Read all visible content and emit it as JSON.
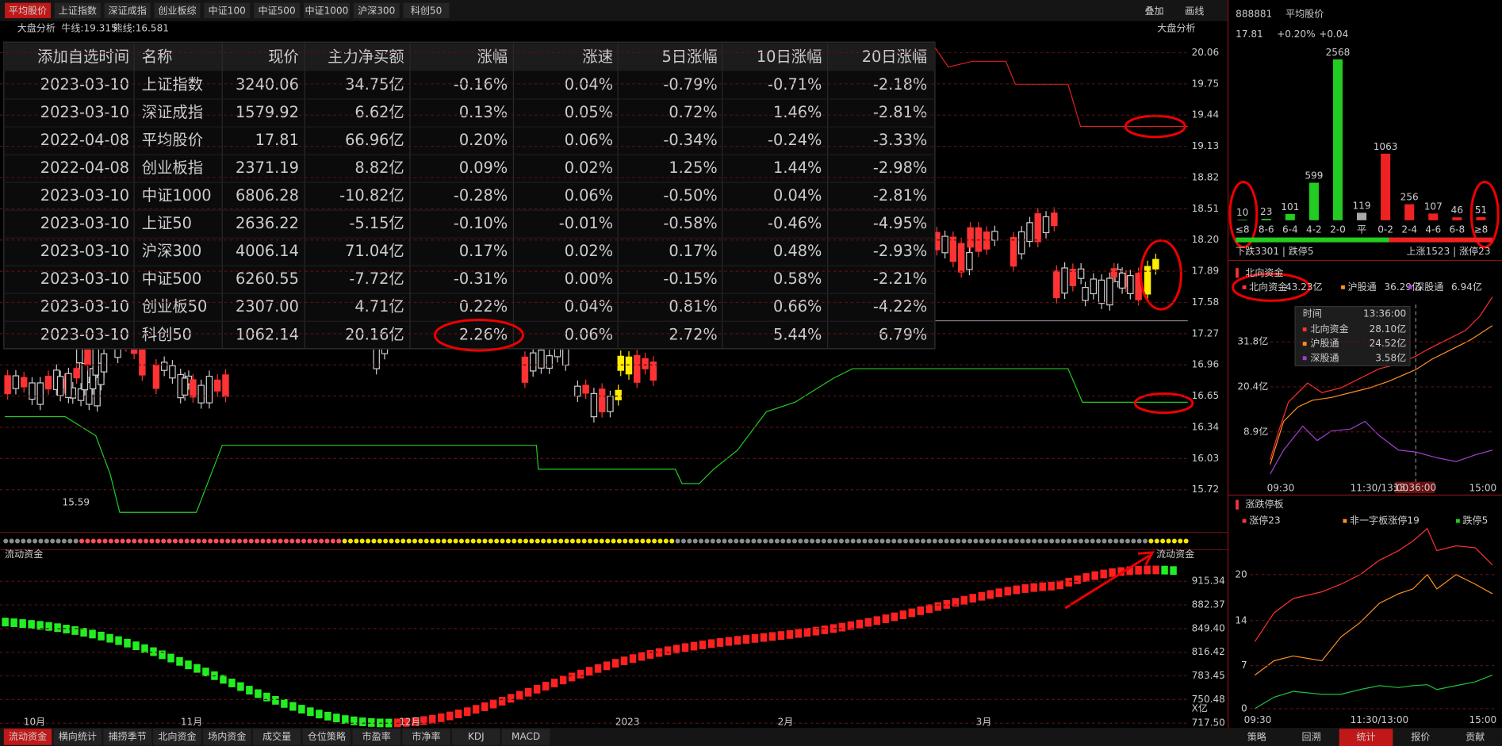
{
  "top_tabs": [
    "平均股价",
    "上证指数",
    "深证成指",
    "创业板综",
    "中证100",
    "中证500",
    "中证1000",
    "沪深300",
    "科创50"
  ],
  "top_right": [
    "叠加",
    "画线"
  ],
  "chart_header": {
    "title": "大盘分析",
    "bull": "牛线:19.315",
    "bear": "熊线:16.581",
    "right": "大盘分析"
  },
  "table": {
    "headers": [
      "添加自选时间",
      "名称",
      "现价",
      "主力净买额",
      "涨幅",
      "涨速",
      "5日涨幅",
      "10日涨幅",
      "20日涨幅"
    ],
    "rows": [
      [
        "2023-03-10",
        "上证指数",
        "3240.06",
        "34.75亿",
        "-0.16%",
        "0.04%",
        "-0.79%",
        "-0.71%",
        "-2.18%"
      ],
      [
        "2023-03-10",
        "深证成指",
        "1579.92",
        "6.62亿",
        "0.13%",
        "0.05%",
        "0.72%",
        "1.46%",
        "-2.81%"
      ],
      [
        "2022-04-08",
        "平均股价",
        "17.81",
        "66.96亿",
        "0.20%",
        "0.06%",
        "-0.34%",
        "-0.24%",
        "-3.33%"
      ],
      [
        "2022-04-08",
        "创业板指",
        "2371.19",
        "8.82亿",
        "0.09%",
        "0.02%",
        "1.25%",
        "1.44%",
        "-2.98%"
      ],
      [
        "2023-03-10",
        "中证1000",
        "6806.28",
        "-10.82亿",
        "-0.28%",
        "0.06%",
        "-0.50%",
        "0.04%",
        "-2.81%"
      ],
      [
        "2023-03-10",
        "上证50",
        "2636.22",
        "-5.15亿",
        "-0.10%",
        "-0.01%",
        "-0.58%",
        "-0.46%",
        "-4.95%"
      ],
      [
        "2023-03-10",
        "沪深300",
        "4006.14",
        "71.04亿",
        "0.17%",
        "0.02%",
        "0.17%",
        "0.48%",
        "-2.93%"
      ],
      [
        "2023-03-10",
        "中证500",
        "6260.55",
        "-7.72亿",
        "-0.31%",
        "0.00%",
        "-0.15%",
        "0.58%",
        "-2.21%"
      ],
      [
        "2023-03-10",
        "创业板50",
        "2307.00",
        "4.71亿",
        "0.22%",
        "0.04%",
        "0.81%",
        "0.66%",
        "-4.22%"
      ],
      [
        "2023-03-10",
        "科创50",
        "1062.14",
        "20.16亿",
        "2.26%",
        "0.06%",
        "2.72%",
        "5.44%",
        "6.79%"
      ]
    ]
  },
  "price_axis": [
    "20.06",
    "19.75",
    "19.44",
    "19.13",
    "18.82",
    "18.51",
    "18.20",
    "17.89",
    "17.58",
    "17.27",
    "16.96",
    "16.65",
    "16.34",
    "16.03",
    "15.72"
  ],
  "price_low": "15.59",
  "flow": {
    "title": "流动资金",
    "right": "流动资金",
    "axis": [
      "915.34",
      "882.37",
      "849.40",
      "816.42",
      "783.45",
      "750.48",
      "717.50"
    ],
    "unit": "X亿"
  },
  "x_labels": [
    "10月",
    "11月",
    "12月",
    "2023",
    "2月",
    "3月"
  ],
  "bottom_tabs": [
    "流动资金",
    "横向统计",
    "捕捞季节",
    "北向资金",
    "场内资金",
    "成交量",
    "仓位策略",
    "市盈率",
    "市净率",
    "KDJ",
    "MACD"
  ],
  "quote": {
    "code": "888881",
    "name": "平均股价",
    "price": "17.81",
    "change_pct": "+0.20%",
    "change": "+0.04"
  },
  "distribution": {
    "categories": [
      "≤8",
      "8-6",
      "6-4",
      "4-2",
      "2-0",
      "平",
      "0-2",
      "2-4",
      "4-6",
      "6-8",
      "≥8"
    ],
    "values": [
      10,
      23,
      101,
      599,
      2568,
      119,
      1063,
      256,
      107,
      46,
      51
    ],
    "footer_left": "下跌3301 | 跌停5",
    "footer_right": "上涨1523 | 涨停23"
  },
  "north": {
    "title": "北向资金",
    "legend": [
      {
        "name": "北向资金",
        "value": "43.23亿"
      },
      {
        "name": "沪股通",
        "value": "36.29亿"
      },
      {
        "name": "深股通",
        "value": "6.94亿"
      }
    ],
    "yaxis": [
      "31.8亿",
      "20.4亿",
      "8.9亿"
    ],
    "xaxis": [
      "09:30",
      "11:30/13:00",
      "15:00"
    ],
    "cursor_time": "13:36:00",
    "tooltip": {
      "time_label": "时间",
      "time": "13:36:00",
      "rows": [
        {
          "name": "北向资金",
          "value": "28.10亿"
        },
        {
          "name": "沪股通",
          "value": "24.52亿"
        },
        {
          "name": "深股通",
          "value": "3.58亿"
        }
      ]
    }
  },
  "limit": {
    "title": "涨跌停板",
    "legend": [
      {
        "name": "涨停",
        "value": "23"
      },
      {
        "name": "非一字板涨停",
        "value": "19"
      },
      {
        "name": "跌停",
        "value": "5"
      }
    ],
    "yaxis": [
      "20",
      "14",
      "7",
      "0"
    ],
    "xaxis": [
      "09:30",
      "11:30/13:00",
      "15:00"
    ]
  },
  "right_tabs": [
    "策略",
    "回溯",
    "统计",
    "报价",
    "贡献"
  ]
}
